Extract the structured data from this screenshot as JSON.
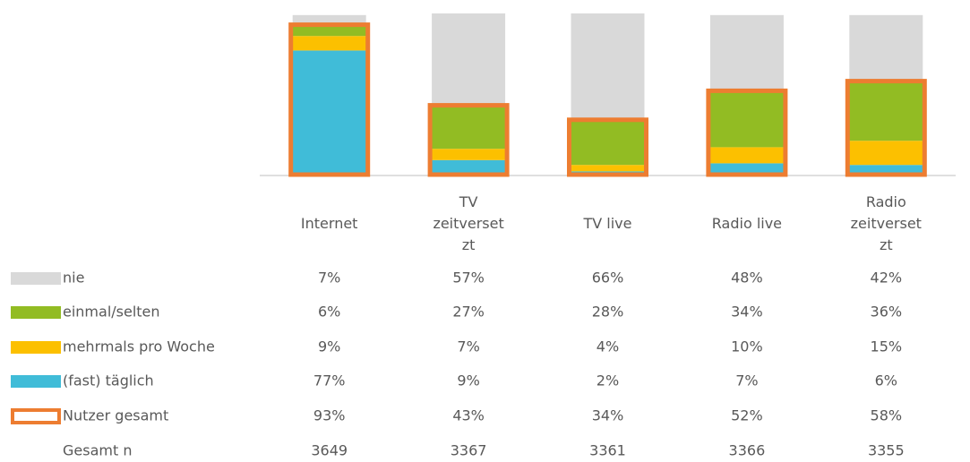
{
  "chart_data": {
    "type": "bar",
    "stacked": true,
    "categories": [
      "Internet",
      "TV zeitversetzt",
      "TV live",
      "Radio live",
      "Radio zeitversetzt"
    ],
    "ylim": [
      0,
      100
    ],
    "series": [
      {
        "name": "nie",
        "color": "#d9d9d9",
        "values": [
          7,
          57,
          66,
          48,
          42
        ],
        "value_labels": [
          "7%",
          "57%",
          "66%",
          "48%",
          "42%"
        ]
      },
      {
        "name": "einmal/selten",
        "color": "#92bc23",
        "values": [
          6,
          27,
          28,
          34,
          36
        ],
        "value_labels": [
          "6%",
          "27%",
          "28%",
          "34%",
          "36%"
        ]
      },
      {
        "name": "mehrmals pro Woche",
        "color": "#fcc000",
        "values": [
          9,
          7,
          4,
          10,
          15
        ],
        "value_labels": [
          "9%",
          "7%",
          "4%",
          "10%",
          "15%"
        ]
      },
      {
        "name": "(fast) täglich",
        "color": "#40bcd8",
        "values": [
          77,
          9,
          2,
          7,
          6
        ],
        "value_labels": [
          "77%",
          "9%",
          "2%",
          "7%",
          "6%"
        ]
      }
    ],
    "outline_series": {
      "name": "Nutzer gesamt",
      "color": "#ed7d31",
      "values": [
        93,
        43,
        34,
        52,
        58
      ],
      "value_labels": [
        "93%",
        "43%",
        "34%",
        "52%",
        "58%"
      ]
    },
    "table_rows": [
      {
        "name": "Gesamt n",
        "values": [
          3649,
          3367,
          3361,
          3366,
          3355
        ]
      }
    ]
  }
}
